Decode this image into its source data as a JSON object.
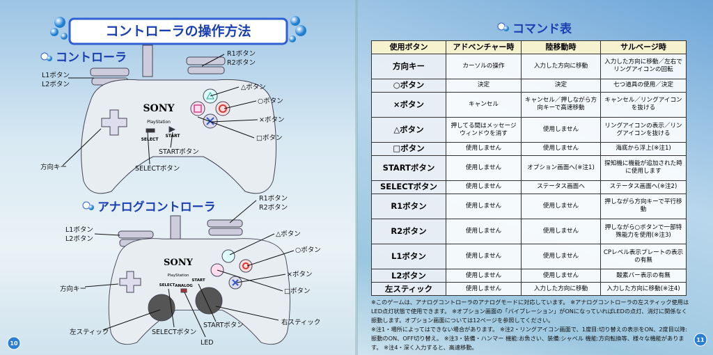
{
  "left_page": {
    "title": "コントローラの操作方法",
    "page_number": "10",
    "controller": {
      "heading": "コントローラ",
      "labels": [
        "R1ボタン",
        "R2ボタン",
        "L1ボタン",
        "L2ボタン",
        "△ボタン",
        "○ボタン",
        "×ボタン",
        "□ボタン",
        "STARTボタン",
        "方向キー",
        "SELECTボタン"
      ],
      "body_text": [
        "SONY",
        "PlayStation",
        "SELECT",
        "START"
      ]
    },
    "analog_controller": {
      "heading": "アナログコントローラ",
      "labels": [
        "R1ボタン",
        "R2ボタン",
        "L1ボタン",
        "L2ボタン",
        "△ボタン",
        "○ボタン",
        "×ボタン",
        "□ボタン",
        "方向キー",
        "左スティック",
        "SELECTボタン",
        "STARTボタン",
        "右スティック",
        "LED"
      ],
      "body_text": [
        "SONY",
        "PlayStation",
        "SELECT",
        "START",
        "ANALOG"
      ]
    }
  },
  "right_page": {
    "heading": "コマンド表",
    "page_number": "11",
    "table": {
      "header": [
        "使用ボタン",
        "アドベンチャー時",
        "陸移動時",
        "サルベージ時"
      ],
      "rows": [
        [
          "方向キー",
          "カーソルの操作",
          "入力した方向に移動",
          "入力した方向に移動／左右でリングアイコンの回転"
        ],
        [
          "○ボタン",
          "決定",
          "決定",
          "七つ道具の使用／決定"
        ],
        [
          "×ボタン",
          "キャンセル",
          "キャンセル／押しながら方向キーで高速移動",
          "キャンセル／リングアイコンを抜ける"
        ],
        [
          "△ボタン",
          "押してる間はメッセージウィンドウを消す",
          "使用しません",
          "リングアイコンの表示／リングアイコンを抜ける"
        ],
        [
          "□ボタン",
          "使用しません",
          "使用しません",
          "海底から浮上(※注1)"
        ],
        [
          "STARTボタン",
          "使用しません",
          "オプション画面へ(※注1)",
          "探知機に機能が追加された時に使用します"
        ],
        [
          "SELECTボタン",
          "使用しません",
          "ステータス画面へ",
          "ステータス画面へ(※注2)"
        ],
        [
          "R1ボタン",
          "使用しません",
          "使用しません",
          "押しながら方向キーで平行移動"
        ],
        [
          "R2ボタン",
          "使用しません",
          "使用しません",
          "押しながら○ボタンで一部特殊能力を使用(※注3)"
        ],
        [
          "L1ボタン",
          "使用しません",
          "使用しません",
          "CPレベル表示プレートの表示の有無"
        ],
        [
          "L2ボタン",
          "使用しません",
          "使用しません",
          "酸素バー表示の有無"
        ],
        [
          "左スティック",
          "使用しません",
          "入力した方向に移動",
          "入力した方向に移動(※注4)"
        ]
      ]
    },
    "notes": [
      "※このゲームは、アナログコントローラのアナログモードに対応しています。 ※アナログコントローラの左スティック使用はLED点灯状態で使用できます。 ※オプション画面の「バイブレーション」がONになっていればLEDの点灯、消灯に関係なく振動します。オプション画面については12ページを参照してください。",
      "※注1・場所によってはできない場合があります。 ※注2・リングアイコン画面で、1度目:切り替えの表示をON、2度目以降:振動のON、OFF切り替え。 ※注3・装備・ハンマー 機能:お魚さい、装備:シャベル 機能:方向転換等、様々な機能があります。 ※注4・深く入力すると、高速移動。"
    ]
  }
}
